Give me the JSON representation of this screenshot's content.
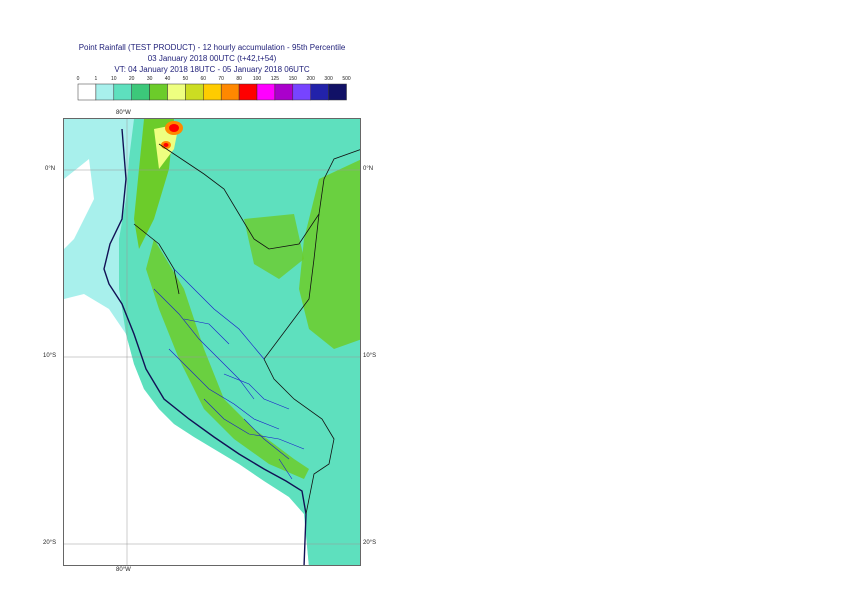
{
  "title": {
    "line1": "Point Rainfall (TEST PRODUCT) - 12 hourly accumulation - 95th Percentile",
    "line2": "03 January 2018 00UTC (t+42,t+54)",
    "line3": "VT: 04 January 2018 18UTC - 05 January 2018 06UTC"
  },
  "legend": {
    "thresholds": [
      "0",
      "1",
      "10",
      "20",
      "30",
      "40",
      "50",
      "60",
      "70",
      "80",
      "100",
      "125",
      "150",
      "200",
      "300",
      "500"
    ],
    "colors": [
      "#ffffff",
      "#a8f0ec",
      "#5ee0be",
      "#3cc87a",
      "#6ccc2a",
      "#eeff80",
      "#ccdd22",
      "#ffcc00",
      "#ff8800",
      "#ff0000",
      "#ff00ff",
      "#aa00cc",
      "#7744ff",
      "#2222aa",
      "#111166"
    ]
  },
  "map": {
    "lat_labels": [
      "0°N",
      "10°S",
      "20°S"
    ],
    "lon_label": "80°W",
    "lat_values": [
      0,
      -10,
      -20
    ],
    "lon_value": -80
  }
}
